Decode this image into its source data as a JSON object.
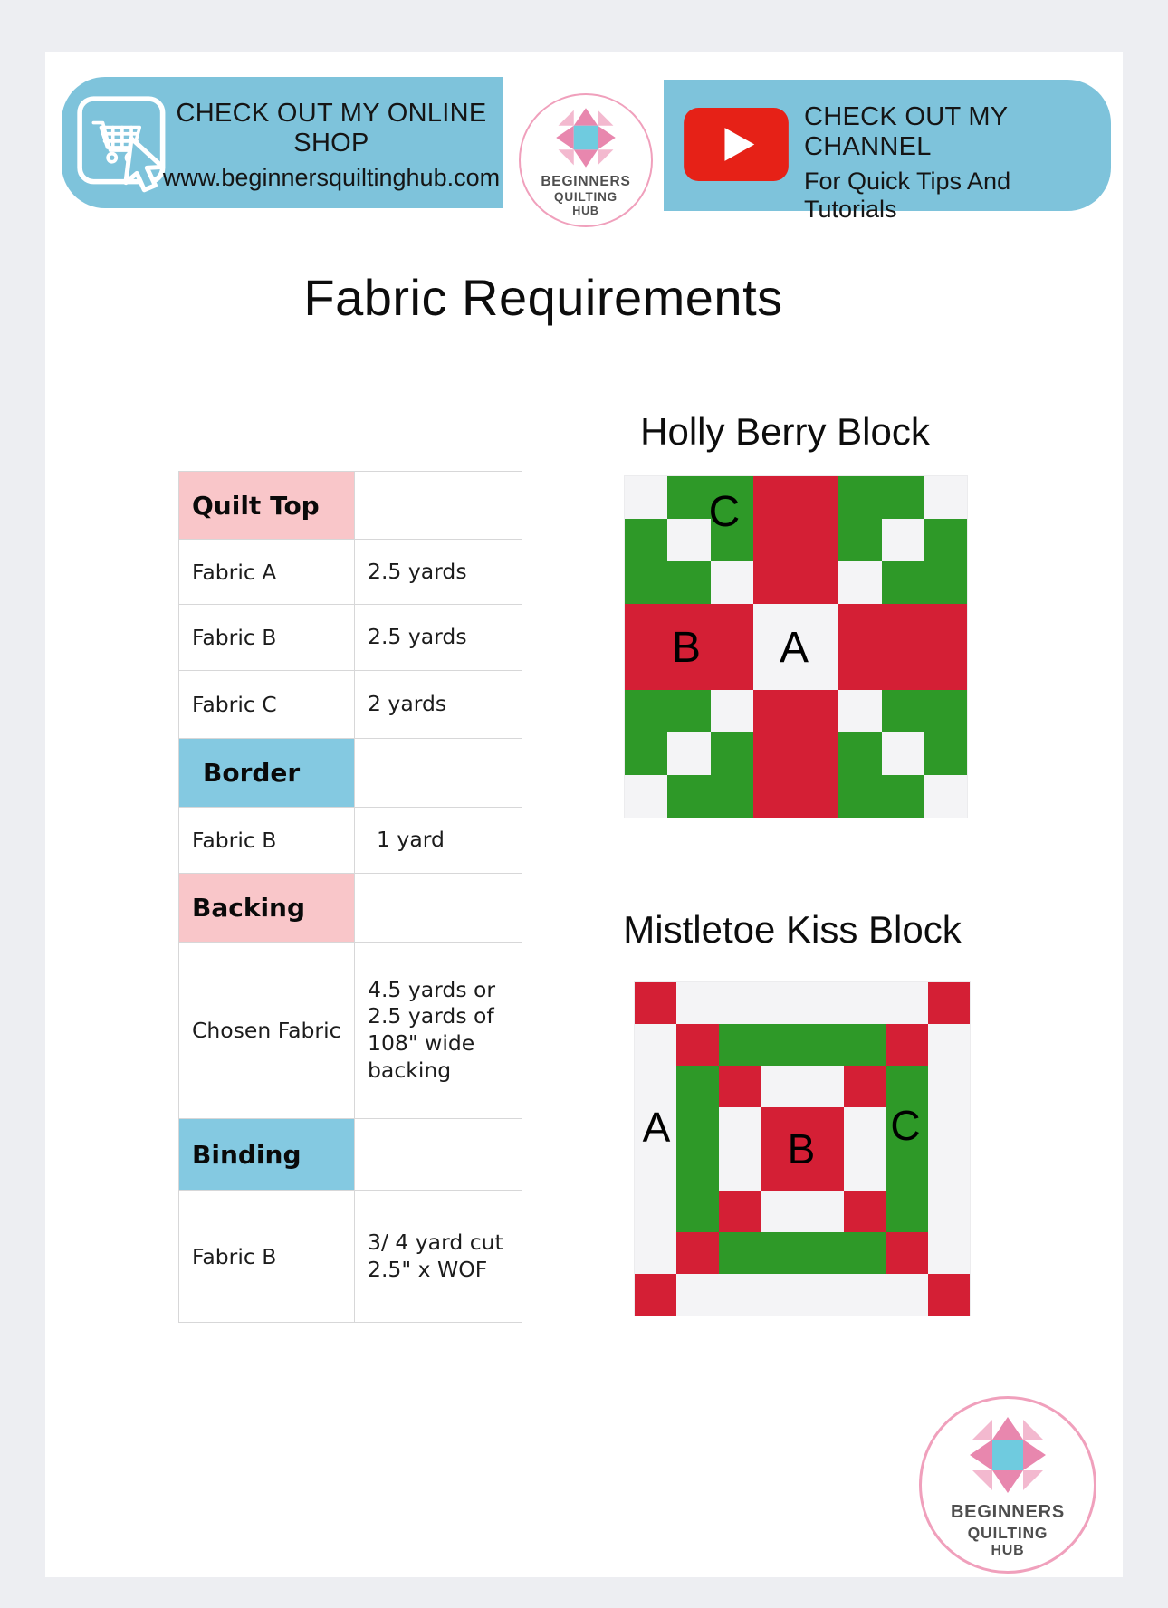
{
  "header": {
    "shop_banner": {
      "title": "CHECK OUT MY ONLINE SHOP",
      "url": "www.beginnersquiltinghub.com"
    },
    "channel_banner": {
      "title": "CHECK OUT MY CHANNEL",
      "subtitle": "For Quick Tips And Tutorials"
    },
    "logo": {
      "lines": [
        "BEGINNERS",
        "QUILTING",
        "HUB"
      ]
    }
  },
  "title": "Fabric Requirements",
  "fabric_table": {
    "rows": [
      {
        "type": "section",
        "color": "pink",
        "label": "Quilt Top",
        "value": ""
      },
      {
        "type": "data",
        "label": "Fabric A",
        "value": "2.5 yards"
      },
      {
        "type": "data",
        "label": "Fabric B",
        "value": "2.5 yards"
      },
      {
        "type": "data",
        "label": "Fabric C",
        "value": "2 yards"
      },
      {
        "type": "section",
        "color": "blue",
        "label": "Border",
        "value": ""
      },
      {
        "type": "data",
        "label": "Fabric B",
        "value": "1 yard"
      },
      {
        "type": "section",
        "color": "pink",
        "label": "Backing",
        "value": ""
      },
      {
        "type": "data",
        "label": "Chosen Fabric",
        "value": "4.5 yards or\n2.5 yards of\n108\" wide\nbacking"
      },
      {
        "type": "section",
        "color": "blue",
        "label": "Binding",
        "value": ""
      },
      {
        "type": "data",
        "label": "Fabric B",
        "value": "3/ 4 yard cut\n2.5\" x WOF"
      }
    ]
  },
  "blocks": [
    {
      "id": "holly",
      "title": "Holly Berry Block",
      "labels": [
        "C",
        "B",
        "A"
      ],
      "grid": [
        "WGGRRGGW",
        "GWGRRGWG",
        "GGWRRWGG",
        "RRRWWRRR",
        "RRRWWRRR",
        "GGWRRWGG",
        "GWGRRGWG",
        "WGGRRGGW"
      ]
    },
    {
      "id": "mistletoe",
      "title": "Mistletoe Kiss Block",
      "labels": [
        "A",
        "B",
        "C"
      ],
      "grid": [
        "RWWWWWWR",
        "WRGGGGRW",
        "WGRWWRGW",
        "WGWRRWGW",
        "WGWRRWGW",
        "WGRWWRGW",
        "WRGGGGRW",
        "RWWWWWWR"
      ]
    }
  ],
  "quilt_colors": {
    "G": "#2e9928",
    "R": "#d41f35",
    "W": "#f4f4f6"
  },
  "footer_logo": {
    "lines": [
      "BEGINNERS",
      "QUILTING",
      "HUB"
    ]
  },
  "colors": {
    "banner_blue": "#7ec3db",
    "table_pink": "#f9c6c9",
    "table_blue": "#84c9e1",
    "youtube_red": "#e62117",
    "logo_pink_dark": "#e887ae",
    "logo_pink_light": "#f3b9cf",
    "logo_blue": "#6fcbdf"
  }
}
